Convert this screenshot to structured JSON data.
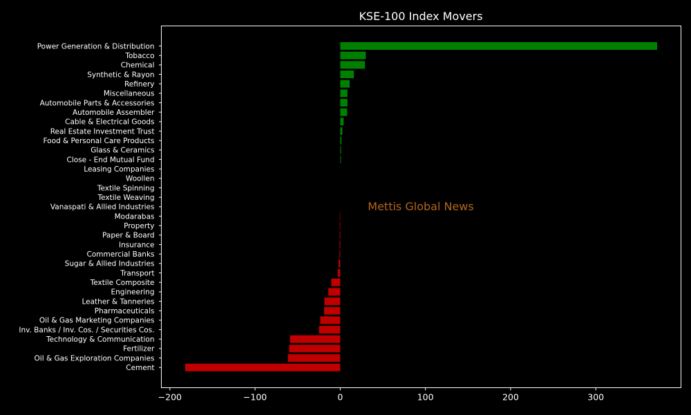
{
  "chart_data": {
    "type": "bar",
    "orientation": "horizontal",
    "title": "KSE-100 Index Movers",
    "xlabel": "",
    "ylabel": "",
    "xlim": [
      -210,
      400
    ],
    "xticks": [
      -200,
      -100,
      0,
      100,
      200,
      300
    ],
    "grid": false,
    "watermark": "Mettis Global News",
    "colors": {
      "background": "#000000",
      "text": "#ffffff",
      "positive": "#008000",
      "negative": "#c00000",
      "watermark": "#b5651d",
      "axis": "#ffffff"
    },
    "categories": [
      "Power Generation & Distribution",
      "Tobacco",
      "Chemical",
      "Synthetic & Rayon",
      "Refinery",
      "Miscellaneous",
      "Automobile Parts & Accessories",
      "Automobile Assembler",
      "Cable & Electrical Goods",
      "Real Estate Investment Trust",
      "Food & Personal Care Products",
      "Glass & Ceramics",
      "Close - End Mutual Fund",
      "Leasing Companies",
      "Woollen",
      "Textile Spinning",
      "Textile Weaving",
      "Vanaspati & Allied Industries",
      "Modarabas",
      "Property",
      "Paper & Board",
      "Insurance",
      "Commercial Banks",
      "Sugar & Allied Industries",
      "Transport",
      "Textile Composite",
      "Engineering",
      "Leather & Tanneries",
      "Pharmaceuticals",
      "Oil & Gas Marketing Companies",
      "Inv. Banks / Inv. Cos. / Securities Cos.",
      "Technology & Communication",
      "Fertilizer",
      "Oil & Gas Exploration Companies",
      "Cement"
    ],
    "values": [
      372,
      30,
      29,
      16,
      11,
      8.5,
      8.5,
      8,
      4,
      2.5,
      1.5,
      1,
      0.8,
      0,
      0,
      0,
      0,
      0,
      -0.5,
      -0.6,
      -0.7,
      -0.8,
      -0.9,
      -2,
      -3,
      -10.5,
      -14,
      -18.5,
      -19,
      -23.5,
      -25,
      -59,
      -60,
      -61.5,
      -182
    ]
  }
}
